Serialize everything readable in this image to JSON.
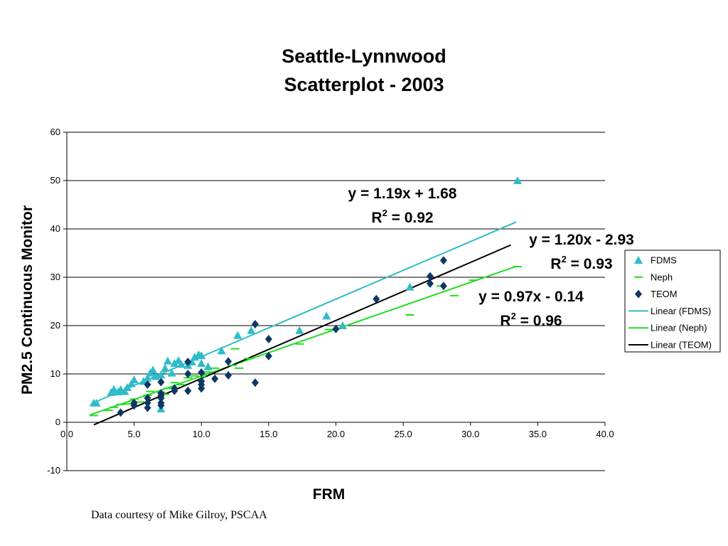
{
  "title_line1": "Seattle-Lynnwood",
  "title_line2": "Scatterplot - 2003",
  "credit": "Data courtesy of Mike Gilroy, PSCAA",
  "colors": {
    "fdms": "#2fbcc8",
    "neph": "#22dd22",
    "teom": "#0e3764",
    "grid": "#000000"
  },
  "chart_data": {
    "type": "scatter",
    "xlabel": "FRM",
    "ylabel": "PM2.5 Continuous Monitor",
    "xlim": [
      0,
      40
    ],
    "ylim": [
      -10,
      60
    ],
    "xticks": [
      "0.0",
      "5.0",
      "10.0",
      "15.0",
      "20.0",
      "25.0",
      "30.0",
      "35.0",
      "40.0"
    ],
    "yticks": [
      "-10",
      "0",
      "10",
      "20",
      "30",
      "40",
      "50",
      "60"
    ],
    "grid": true,
    "legend_position": "right",
    "legend": [
      "FDMS",
      "Neph",
      "TEOM",
      "Linear (FDMS)",
      "Linear (Neph)",
      "Linear (TEOM)"
    ],
    "series": [
      {
        "name": "FDMS",
        "marker": "triangle",
        "points": [
          [
            2,
            4
          ],
          [
            2.2,
            4
          ],
          [
            3.3,
            6.2
          ],
          [
            3.5,
            6.8
          ],
          [
            3.8,
            6.3
          ],
          [
            4,
            6.8
          ],
          [
            4.3,
            6.4
          ],
          [
            4.5,
            7.2
          ],
          [
            4.8,
            8
          ],
          [
            5,
            8.8
          ],
          [
            5.7,
            8.5
          ],
          [
            6,
            9.2
          ],
          [
            6.2,
            10.2
          ],
          [
            6.4,
            10.8
          ],
          [
            6.6,
            9.5
          ],
          [
            7,
            2.8
          ],
          [
            7,
            9.8
          ],
          [
            7.3,
            11.2
          ],
          [
            7.5,
            12.7
          ],
          [
            7.8,
            10.2
          ],
          [
            8,
            12.2
          ],
          [
            8.3,
            12.8
          ],
          [
            8.5,
            12
          ],
          [
            9,
            11.8
          ],
          [
            9.3,
            12.5
          ],
          [
            9.5,
            13.5
          ],
          [
            9.8,
            14
          ],
          [
            10,
            12.2
          ],
          [
            10,
            13.8
          ],
          [
            10.5,
            11.5
          ],
          [
            11.5,
            14.8
          ],
          [
            12.7,
            18
          ],
          [
            13.7,
            19
          ],
          [
            17.3,
            19
          ],
          [
            19.3,
            22
          ],
          [
            20.5,
            20
          ],
          [
            25.5,
            28
          ],
          [
            33.5,
            50
          ]
        ]
      },
      {
        "name": "Neph",
        "marker": "dash",
        "points": [
          [
            2,
            1.4
          ],
          [
            3.1,
            2.5
          ],
          [
            3.5,
            3.1
          ],
          [
            4,
            3.7
          ],
          [
            4.5,
            3.8
          ],
          [
            5,
            4.8
          ],
          [
            5.5,
            4.2
          ],
          [
            6,
            5.6
          ],
          [
            6.2,
            6.4
          ],
          [
            7,
            6.2
          ],
          [
            7.3,
            5.8
          ],
          [
            7.5,
            7
          ],
          [
            8,
            8.2
          ],
          [
            8.5,
            7.8
          ],
          [
            9,
            9.2
          ],
          [
            9.5,
            9.6
          ],
          [
            10,
            9.4
          ],
          [
            10.5,
            10.4
          ],
          [
            11,
            11.2
          ],
          [
            12.3,
            11.8
          ],
          [
            12.8,
            11.2
          ],
          [
            12.5,
            15.2
          ],
          [
            13.5,
            13.2
          ],
          [
            17.3,
            16.2
          ],
          [
            19.5,
            19.2
          ],
          [
            25.5,
            22.2
          ],
          [
            27.8,
            28.2
          ],
          [
            28.8,
            26.2
          ],
          [
            30.2,
            29.4
          ],
          [
            33.5,
            32.2
          ]
        ]
      },
      {
        "name": "TEOM",
        "marker": "diamond",
        "points": [
          [
            4,
            2
          ],
          [
            5,
            3.5
          ],
          [
            5,
            4
          ],
          [
            6,
            3
          ],
          [
            6,
            4
          ],
          [
            6,
            5
          ],
          [
            6,
            7.8
          ],
          [
            7,
            3.5
          ],
          [
            7,
            4
          ],
          [
            7,
            5
          ],
          [
            7,
            5.5
          ],
          [
            7,
            6
          ],
          [
            7,
            8.3
          ],
          [
            8,
            6.5
          ],
          [
            8,
            7
          ],
          [
            9,
            6.5
          ],
          [
            9,
            10
          ],
          [
            9,
            12.5
          ],
          [
            10,
            7
          ],
          [
            10,
            7.8
          ],
          [
            10,
            8.5
          ],
          [
            10,
            10.3
          ],
          [
            11,
            9
          ],
          [
            12,
            9.7
          ],
          [
            12,
            12.6
          ],
          [
            14,
            8.2
          ],
          [
            14,
            20.3
          ],
          [
            15,
            13.7
          ],
          [
            15,
            17.2
          ],
          [
            20,
            19.3
          ],
          [
            23,
            25.5
          ],
          [
            27,
            28.7
          ],
          [
            27,
            30.2
          ],
          [
            28,
            28.2
          ],
          [
            28,
            33.5
          ]
        ]
      }
    ],
    "trendlines": [
      {
        "name": "Linear (FDMS)",
        "slope": 1.19,
        "intercept": 1.68,
        "x_range": [
          2,
          33.4
        ],
        "equation": "y = 1.19x + 1.68",
        "r2": "R",
        "r2_sup": "2",
        "r2_val": " = 0.92"
      },
      {
        "name": "Linear (Neph)",
        "slope": 0.97,
        "intercept": -0.14,
        "x_range": [
          1.7,
          33.4
        ],
        "equation": "y = 0.97x - 0.14",
        "r2": "R",
        "r2_sup": "2",
        "r2_val": " = 0.96"
      },
      {
        "name": "Linear (TEOM)",
        "slope": 1.2,
        "intercept": -2.93,
        "x_range": [
          2,
          33
        ],
        "equation": "y = 1.20x - 2.93",
        "r2": "R",
        "r2_sup": "2",
        "r2_val": " = 0.93"
      }
    ]
  }
}
